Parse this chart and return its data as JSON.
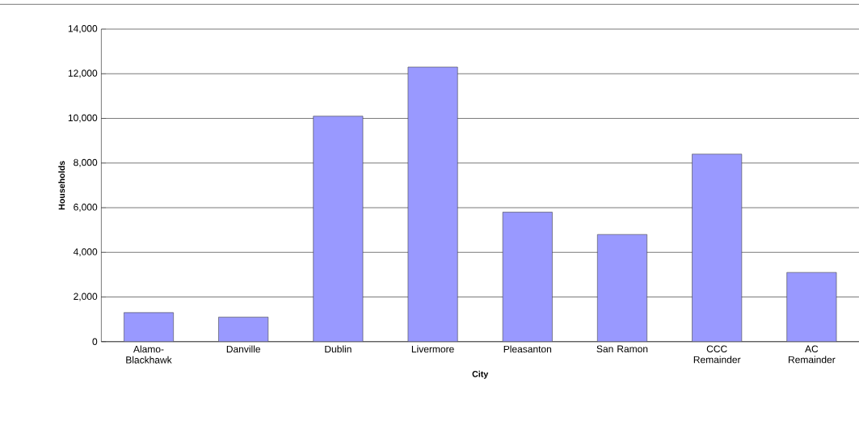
{
  "chart_data": {
    "type": "bar",
    "xlabel": "City",
    "ylabel": "Households",
    "categories": [
      "Alamo-Blackhawk",
      "Danville",
      "Dublin",
      "Livermore",
      "Pleasanton",
      "San Ramon",
      "CCC Remainder",
      "AC Remainder"
    ],
    "values": [
      1300,
      1100,
      10100,
      12300,
      5800,
      4800,
      8400,
      3100
    ],
    "color": "#9999ff",
    "ylim": [
      0,
      14000
    ],
    "yticks": [
      {
        "value": 0,
        "label": "0"
      },
      {
        "value": 2000,
        "label": "2,000"
      },
      {
        "value": 4000,
        "label": "4,000"
      },
      {
        "value": 6000,
        "label": "6,000"
      },
      {
        "value": 8000,
        "label": "8,000"
      },
      {
        "value": 10000,
        "label": "10,000"
      },
      {
        "value": 12000,
        "label": "12,000"
      },
      {
        "value": 14000,
        "label": "14,000"
      }
    ],
    "grid": "y"
  }
}
